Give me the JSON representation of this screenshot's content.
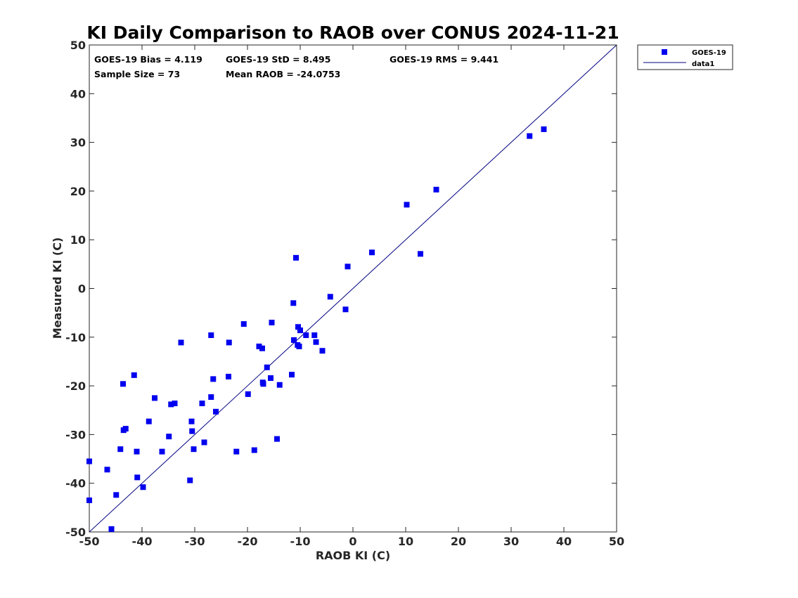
{
  "chart_data": {
    "type": "scatter",
    "title": "KI Daily Comparison to RAOB over CONUS 2024-11-21",
    "xlabel": "RAOB KI (C)",
    "ylabel": "Measured KI (C)",
    "xlim": [
      -50,
      50
    ],
    "ylim": [
      -50,
      50
    ],
    "xticks": [
      "-50",
      "-40",
      "-30",
      "-20",
      "-10",
      "0",
      "10",
      "20",
      "30",
      "40",
      "50"
    ],
    "yticks": [
      "50",
      "40",
      "30",
      "20",
      "10",
      "0",
      "-10",
      "-20",
      "-30",
      "-40",
      "-50"
    ],
    "grid": false,
    "legend_position": "outside-top-right",
    "legend": [
      {
        "label": "GOES-19",
        "kind": "marker",
        "color": "#0000ee"
      },
      {
        "label": "data1",
        "kind": "line",
        "color": "#000080"
      }
    ],
    "stats": [
      "GOES-19 Bias = 4.119",
      "GOES-19 StD = 8.495",
      "GOES-19 RMS = 9.441",
      "Sample Size = 73",
      "Mean RAOB = -24.0753"
    ],
    "reference_line": {
      "name": "data1",
      "x": [
        -50,
        50
      ],
      "y": [
        -50,
        50
      ],
      "color": "#000080"
    },
    "series": [
      {
        "name": "GOES-19",
        "color": "#0000ee",
        "marker": "square",
        "points": [
          [
            -50.0,
            -35.5
          ],
          [
            -50.0,
            -43.5
          ],
          [
            -46.6,
            -37.2
          ],
          [
            -45.8,
            -49.4
          ],
          [
            -44.9,
            -42.4
          ],
          [
            -44.1,
            -33.0
          ],
          [
            -43.6,
            -19.6
          ],
          [
            -43.5,
            -29.1
          ],
          [
            -43.1,
            -28.8
          ],
          [
            -41.5,
            -17.8
          ],
          [
            -41.0,
            -33.5
          ],
          [
            -40.9,
            -38.8
          ],
          [
            -39.8,
            -40.8
          ],
          [
            -38.7,
            -27.3
          ],
          [
            -37.6,
            -22.5
          ],
          [
            -36.2,
            -33.5
          ],
          [
            -34.9,
            -30.4
          ],
          [
            -34.5,
            -23.8
          ],
          [
            -33.8,
            -23.6
          ],
          [
            -32.6,
            -11.1
          ],
          [
            -30.9,
            -39.4
          ],
          [
            -30.6,
            -27.3
          ],
          [
            -30.5,
            -29.3
          ],
          [
            -30.2,
            -33.0
          ],
          [
            -28.6,
            -23.6
          ],
          [
            -28.2,
            -31.6
          ],
          [
            -26.9,
            -22.3
          ],
          [
            -26.9,
            -9.6
          ],
          [
            -26.5,
            -18.6
          ],
          [
            -26.0,
            -25.3
          ],
          [
            -23.6,
            -18.1
          ],
          [
            -23.5,
            -11.1
          ],
          [
            -22.1,
            -33.5
          ],
          [
            -20.7,
            -7.3
          ],
          [
            -19.9,
            -21.7
          ],
          [
            -18.7,
            -33.2
          ],
          [
            -17.8,
            -11.9
          ],
          [
            -17.2,
            -12.3
          ],
          [
            -17.1,
            -19.3
          ],
          [
            -17.0,
            -19.6
          ],
          [
            -16.3,
            -16.2
          ],
          [
            -15.6,
            -18.4
          ],
          [
            -15.4,
            -7.0
          ],
          [
            -14.4,
            -30.9
          ],
          [
            -13.9,
            -19.8
          ],
          [
            -11.6,
            -17.7
          ],
          [
            -11.3,
            -3.0
          ],
          [
            -11.2,
            -10.6
          ],
          [
            -10.8,
            6.3
          ],
          [
            -10.5,
            -11.6
          ],
          [
            -10.4,
            -7.9
          ],
          [
            -10.2,
            -11.9
          ],
          [
            -10.0,
            -8.6
          ],
          [
            -8.9,
            -9.6
          ],
          [
            -7.3,
            -9.6
          ],
          [
            -7.0,
            -11.0
          ],
          [
            -5.8,
            -12.8
          ],
          [
            -4.3,
            -1.7
          ],
          [
            -1.4,
            -4.3
          ],
          [
            -1.0,
            4.5
          ],
          [
            3.6,
            7.4
          ],
          [
            10.2,
            17.2
          ],
          [
            12.8,
            7.1
          ],
          [
            15.8,
            20.3
          ],
          [
            33.5,
            31.3
          ],
          [
            36.2,
            32.7
          ]
        ]
      }
    ]
  }
}
